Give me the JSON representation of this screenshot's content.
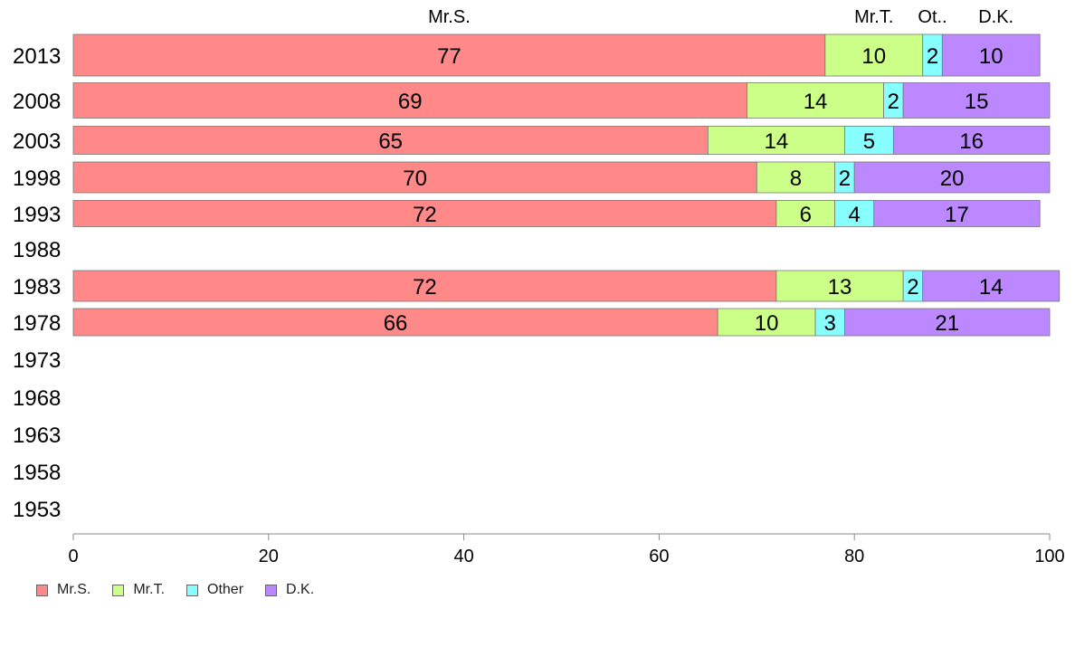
{
  "chart_data": {
    "type": "bar",
    "orientation": "horizontal",
    "stacked": true,
    "categories": [
      "2013",
      "2008",
      "2003",
      "1998",
      "1993",
      "1988",
      "1983",
      "1978",
      "1973",
      "1968",
      "1963",
      "1958",
      "1953"
    ],
    "series": [
      {
        "name": "Mr.S.",
        "values": [
          77,
          69,
          65,
          70,
          72,
          null,
          72,
          66,
          null,
          null,
          null,
          null,
          null
        ],
        "color": "#ff8888"
      },
      {
        "name": "Mr.T.",
        "values": [
          10,
          14,
          14,
          8,
          6,
          null,
          13,
          10,
          null,
          null,
          null,
          null,
          null
        ],
        "color": "#ccff88"
      },
      {
        "name": "Other",
        "values": [
          2,
          2,
          5,
          2,
          4,
          null,
          2,
          3,
          null,
          null,
          null,
          null,
          null
        ],
        "color": "#88ffff"
      },
      {
        "name": "D.K.",
        "values": [
          10,
          15,
          16,
          20,
          17,
          null,
          14,
          21,
          null,
          null,
          null,
          null,
          null
        ],
        "color": "#bb88ff"
      }
    ],
    "top_labels": [
      "Mr.S.",
      "Mr.T.",
      "Ot..",
      "D.K."
    ],
    "x_ticks": [
      0,
      20,
      40,
      60,
      80,
      100
    ],
    "xlim": [
      0,
      100
    ],
    "grid": false,
    "legend_position": "bottom-left"
  }
}
